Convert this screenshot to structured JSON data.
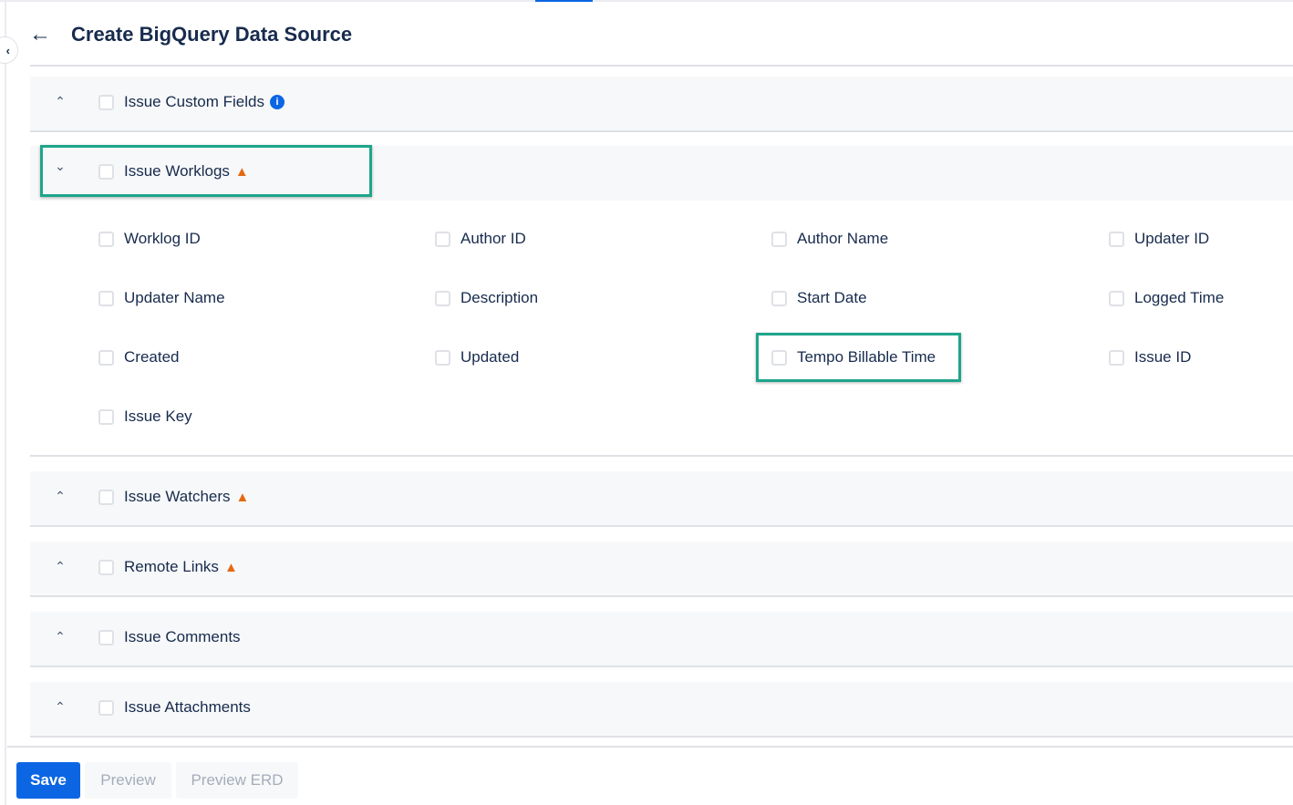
{
  "header": {
    "title": "Create BigQuery Data Source",
    "back_icon": "arrow-left-icon"
  },
  "sections": [
    {
      "label": "Issue Custom Fields",
      "expanded": false,
      "badge": "info"
    },
    {
      "label": "Issue Worklogs",
      "expanded": true,
      "badge": "warning",
      "fields": [
        "Worklog ID",
        "Author ID",
        "Author Name",
        "Updater ID",
        "Updater Name",
        "Description",
        "Start Date",
        "Logged Time",
        "Created",
        "Updated",
        "Tempo Billable Time",
        "Issue ID",
        "Issue Key"
      ]
    },
    {
      "label": "Issue Watchers",
      "expanded": false,
      "badge": "warning"
    },
    {
      "label": "Remote Links",
      "expanded": false,
      "badge": "warning"
    },
    {
      "label": "Issue Comments",
      "expanded": false
    },
    {
      "label": "Issue Attachments",
      "expanded": false
    }
  ],
  "footer": {
    "save": "Save",
    "preview": "Preview",
    "preview_erd": "Preview ERD"
  },
  "colors": {
    "primary": "#0c66e4",
    "warning": "#e56910",
    "highlight": "#1ea58a"
  }
}
